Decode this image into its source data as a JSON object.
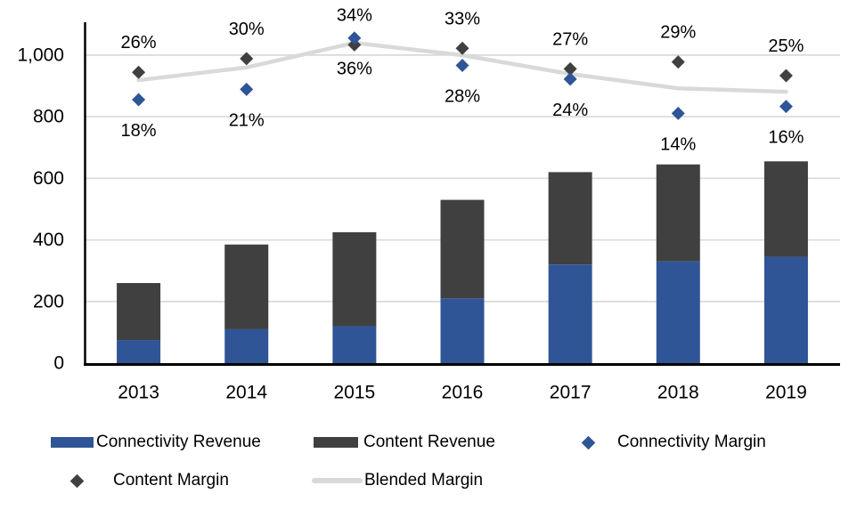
{
  "chart_data": {
    "type": "combo",
    "subtype": "stacked-bar with scatter points and line on secondary percentage axis",
    "title": "",
    "categories": [
      "2013",
      "2014",
      "2015",
      "2016",
      "2017",
      "2018",
      "2019"
    ],
    "series": [
      {
        "name": "Connectivity Revenue",
        "type": "bar",
        "stack": "revenue",
        "color": "#2F5596",
        "values": [
          75,
          110,
          120,
          210,
          320,
          330,
          345
        ]
      },
      {
        "name": "Content Revenue",
        "type": "bar",
        "stack": "revenue",
        "color": "#404040",
        "values": [
          185,
          275,
          305,
          320,
          300,
          315,
          310
        ]
      },
      {
        "name": "Connectivity Margin",
        "type": "scatter",
        "marker": "diamond-icon",
        "color": "#2F5596",
        "values_pct": [
          18,
          21,
          36,
          28,
          24,
          14,
          16
        ],
        "data_labels": [
          "18%",
          "21%",
          "36%",
          "28%",
          "24%",
          "14%",
          "16%"
        ],
        "label_position": "below"
      },
      {
        "name": "Content Margin",
        "type": "scatter",
        "marker": "diamond-icon",
        "color": "#404040",
        "values_pct": [
          26,
          30,
          34,
          33,
          27,
          29,
          25
        ],
        "data_labels": [
          "26%",
          "30%",
          "34%",
          "33%",
          "27%",
          "29%",
          "25%"
        ],
        "label_position": "above"
      },
      {
        "name": "Blended Margin",
        "type": "line",
        "color": "#D9D9D9",
        "values_pct": [
          23.7,
          27.4,
          34.6,
          31.0,
          25.5,
          21.3,
          20.3
        ]
      }
    ],
    "y_axis": {
      "tick_labels": [
        "0",
        "200",
        "400",
        "600",
        "800",
        "1,000"
      ],
      "tick_values": [
        0,
        200,
        400,
        600,
        800,
        1000
      ],
      "range_plotted": [
        0,
        1100
      ]
    },
    "x_axis": {
      "tick_labels": [
        "2013",
        "2014",
        "2015",
        "2016",
        "2017",
        "2018",
        "2019"
      ]
    },
    "grid": true,
    "gridline_color": "#D9D9D9",
    "axis_line_color": "#000000",
    "text_color": "#000000",
    "background": "#FFFFFF",
    "legend_position": "bottom",
    "legend_rows": [
      [
        0,
        1,
        2
      ],
      [
        3,
        4
      ]
    ]
  }
}
